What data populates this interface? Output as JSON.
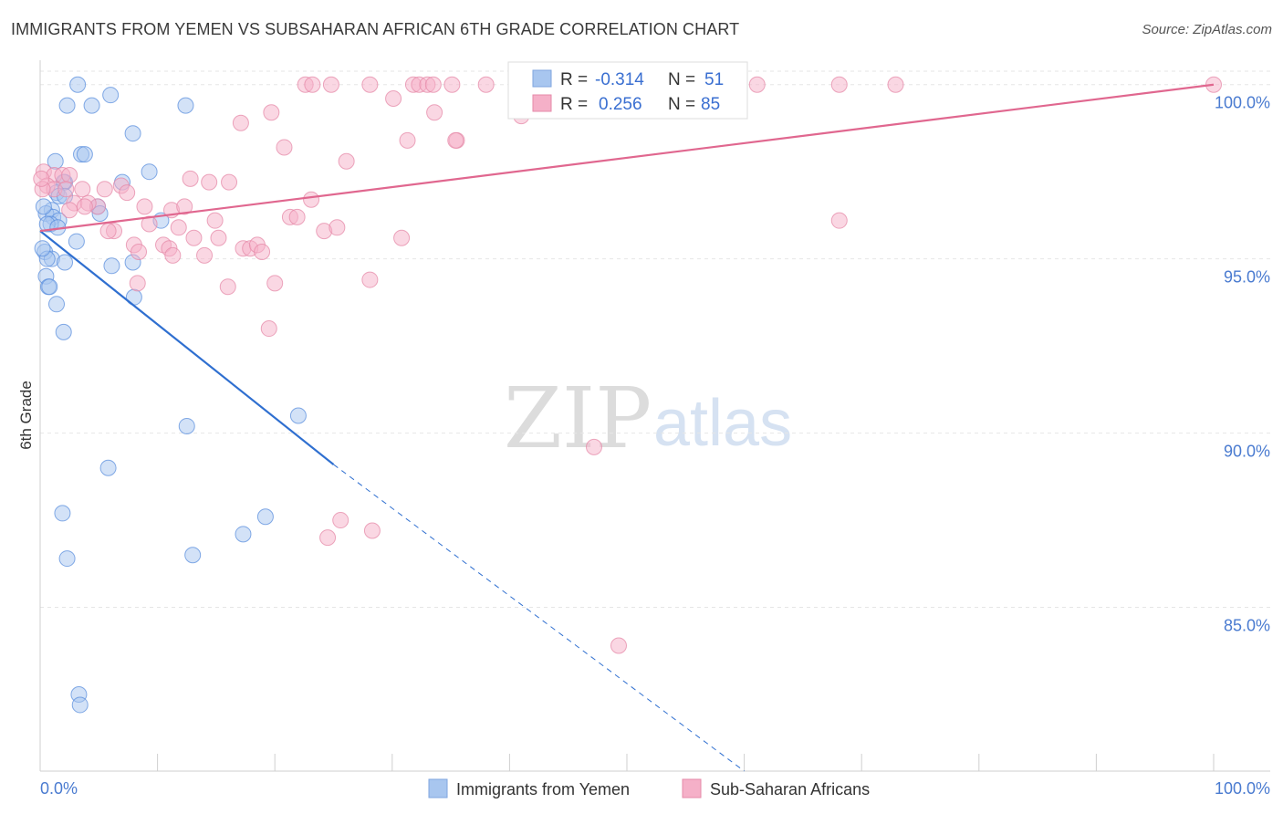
{
  "title": "IMMIGRANTS FROM YEMEN VS SUBSAHARAN AFRICAN 6TH GRADE CORRELATION CHART",
  "source": "Source: ZipAtlas.com",
  "watermark": {
    "zip": "ZIP",
    "atlas": "atlas"
  },
  "stats_box": {
    "rows": [
      {
        "r_label": "R =",
        "r_value": "-0.314",
        "n_label": "N =",
        "n_value": "51",
        "color": "#a8c6ef"
      },
      {
        "r_label": "R =",
        "r_value": "0.256",
        "n_label": "N =",
        "n_value": "85",
        "color": "#f5b0c8"
      }
    ]
  },
  "legend": [
    {
      "label": "Immigrants from Yemen",
      "color": "#a8c6ef"
    },
    {
      "label": "Sub-Saharan Africans",
      "color": "#f5b0c8"
    }
  ],
  "chart_data": {
    "type": "scatter",
    "title": "IMMIGRANTS FROM YEMEN VS SUBSAHARAN AFRICAN 6TH GRADE CORRELATION CHART",
    "xlabel": "",
    "ylabel": "6th Grade",
    "xlim": [
      0,
      100
    ],
    "ylim": [
      80.3,
      100.7
    ],
    "x_tick_labels": [
      "0.0%",
      "100.0%"
    ],
    "y_ticks": [
      85,
      90,
      95,
      100
    ],
    "y_tick_labels": [
      "85.0%",
      "90.0%",
      "95.0%",
      "100.0%"
    ],
    "grid": true,
    "legend_position": "bottom-center",
    "series": [
      {
        "name": "Immigrants from Yemen",
        "color": "#5b8fdd",
        "fill": "#a8c6ef",
        "trend": {
          "x0": 0,
          "y0": 95.8,
          "x1": 25,
          "y1": 89.1,
          "dashed_to_x": 60,
          "dashed_to_y": 80.3,
          "color": "#2f6fd0"
        },
        "points": [
          [
            3.2,
            100.0
          ],
          [
            2.3,
            99.4
          ],
          [
            4.4,
            99.4
          ],
          [
            6.0,
            99.7
          ],
          [
            12.4,
            99.4
          ],
          [
            7.9,
            98.6
          ],
          [
            3.5,
            98.0
          ],
          [
            3.8,
            98.0
          ],
          [
            1.3,
            97.8
          ],
          [
            9.3,
            97.5
          ],
          [
            2.1,
            97.2
          ],
          [
            2.0,
            97.2
          ],
          [
            7.0,
            97.2
          ],
          [
            1.4,
            96.9
          ],
          [
            1.6,
            96.8
          ],
          [
            2.1,
            96.8
          ],
          [
            4.9,
            96.5
          ],
          [
            1.0,
            96.4
          ],
          [
            0.5,
            96.3
          ],
          [
            1.1,
            96.2
          ],
          [
            1.6,
            96.1
          ],
          [
            5.1,
            96.3
          ],
          [
            10.3,
            96.1
          ],
          [
            0.9,
            96.0
          ],
          [
            0.6,
            96.0
          ],
          [
            1.5,
            95.9
          ],
          [
            0.4,
            95.2
          ],
          [
            3.1,
            95.5
          ],
          [
            1.0,
            95.0
          ],
          [
            0.6,
            95.0
          ],
          [
            2.1,
            94.9
          ],
          [
            6.1,
            94.8
          ],
          [
            7.9,
            94.9
          ],
          [
            0.5,
            94.5
          ],
          [
            0.7,
            94.2
          ],
          [
            0.8,
            94.2
          ],
          [
            1.4,
            93.7
          ],
          [
            2.0,
            92.9
          ],
          [
            8.0,
            93.9
          ],
          [
            12.5,
            90.2
          ],
          [
            22.0,
            90.5
          ],
          [
            5.8,
            89.0
          ],
          [
            1.9,
            87.7
          ],
          [
            19.2,
            87.6
          ],
          [
            17.3,
            87.1
          ],
          [
            13.0,
            86.5
          ],
          [
            2.3,
            86.4
          ],
          [
            3.3,
            82.5
          ],
          [
            3.4,
            82.2
          ],
          [
            0.3,
            96.5
          ],
          [
            0.2,
            95.3
          ]
        ]
      },
      {
        "name": "Sub-Saharan Africans",
        "color": "#e58aa8",
        "fill": "#f5b0c8",
        "trend": {
          "x0": 0,
          "y0": 95.8,
          "x1": 100,
          "y1": 100.0,
          "color": "#e0678f"
        },
        "points": [
          [
            22.6,
            100.0
          ],
          [
            23.2,
            100.0
          ],
          [
            24.8,
            100.0
          ],
          [
            28.1,
            100.0
          ],
          [
            31.8,
            100.0
          ],
          [
            32.3,
            100.0
          ],
          [
            33.0,
            100.0
          ],
          [
            33.5,
            100.0
          ],
          [
            35.1,
            100.0
          ],
          [
            38.0,
            100.0
          ],
          [
            40.9,
            100.0
          ],
          [
            45.7,
            100.0
          ],
          [
            57.6,
            100.0
          ],
          [
            61.1,
            100.0
          ],
          [
            68.1,
            100.0
          ],
          [
            72.9,
            100.0
          ],
          [
            100.0,
            100.0
          ],
          [
            30.1,
            99.6
          ],
          [
            33.6,
            99.2
          ],
          [
            19.7,
            99.2
          ],
          [
            17.1,
            98.9
          ],
          [
            41.0,
            99.1
          ],
          [
            35.5,
            98.4
          ],
          [
            31.3,
            98.4
          ],
          [
            35.4,
            98.4
          ],
          [
            20.8,
            98.2
          ],
          [
            26.1,
            97.8
          ],
          [
            0.3,
            97.5
          ],
          [
            1.2,
            97.4
          ],
          [
            1.9,
            97.4
          ],
          [
            2.5,
            97.4
          ],
          [
            4.9,
            96.5
          ],
          [
            12.8,
            97.3
          ],
          [
            14.4,
            97.2
          ],
          [
            16.1,
            97.2
          ],
          [
            0.6,
            97.1
          ],
          [
            1.2,
            97.0
          ],
          [
            2.2,
            97.0
          ],
          [
            3.6,
            97.0
          ],
          [
            5.5,
            97.0
          ],
          [
            6.9,
            97.1
          ],
          [
            7.4,
            96.9
          ],
          [
            2.9,
            96.6
          ],
          [
            4.1,
            96.6
          ],
          [
            3.8,
            96.5
          ],
          [
            2.5,
            96.4
          ],
          [
            8.9,
            96.5
          ],
          [
            11.2,
            96.4
          ],
          [
            12.3,
            96.5
          ],
          [
            23.1,
            96.7
          ],
          [
            14.9,
            96.1
          ],
          [
            21.3,
            96.2
          ],
          [
            21.9,
            96.2
          ],
          [
            68.1,
            96.1
          ],
          [
            9.3,
            96.0
          ],
          [
            11.8,
            95.9
          ],
          [
            24.2,
            95.8
          ],
          [
            25.3,
            95.9
          ],
          [
            6.3,
            95.8
          ],
          [
            5.8,
            95.8
          ],
          [
            13.1,
            95.6
          ],
          [
            15.2,
            95.6
          ],
          [
            30.8,
            95.6
          ],
          [
            8.0,
            95.4
          ],
          [
            10.5,
            95.4
          ],
          [
            17.3,
            95.3
          ],
          [
            17.9,
            95.3
          ],
          [
            18.5,
            95.4
          ],
          [
            18.9,
            95.2
          ],
          [
            8.4,
            95.2
          ],
          [
            11.0,
            95.3
          ],
          [
            11.3,
            95.1
          ],
          [
            14.0,
            95.1
          ],
          [
            8.3,
            94.3
          ],
          [
            16.0,
            94.2
          ],
          [
            20.0,
            94.3
          ],
          [
            28.1,
            94.4
          ],
          [
            19.5,
            93.0
          ],
          [
            47.2,
            89.6
          ],
          [
            25.6,
            87.5
          ],
          [
            24.5,
            87.0
          ],
          [
            28.3,
            87.2
          ],
          [
            49.3,
            83.9
          ],
          [
            0.2,
            97.0
          ],
          [
            0.1,
            97.3
          ]
        ]
      }
    ]
  }
}
